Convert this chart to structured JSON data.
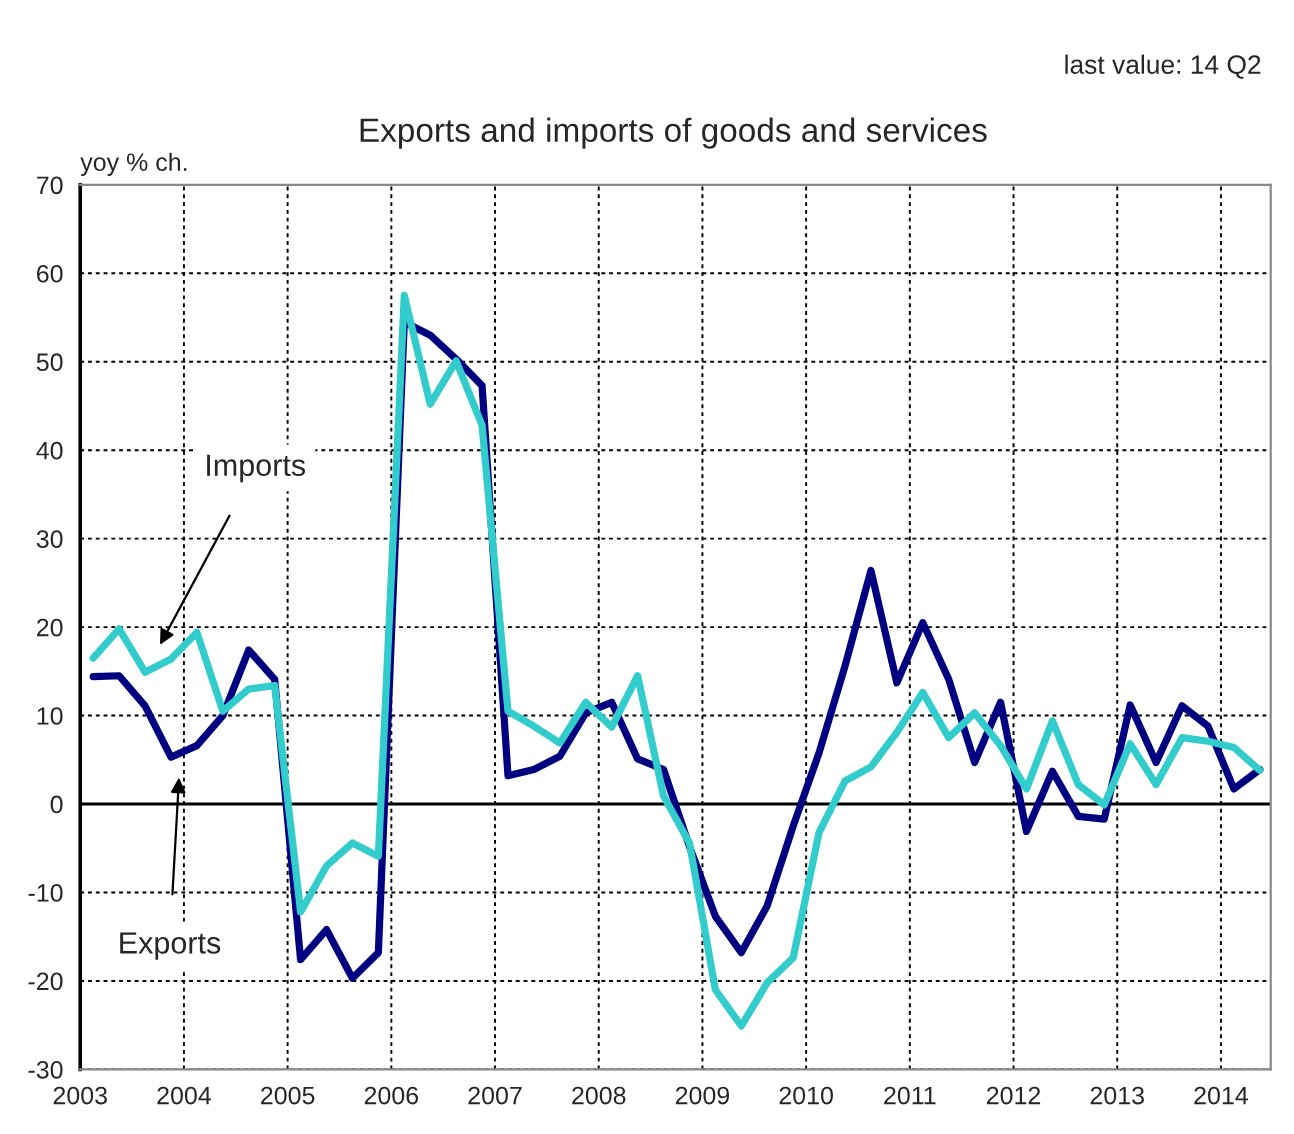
{
  "chart_data": {
    "type": "line",
    "title": "Exports and imports of goods and services",
    "subtitle": "last value: 14 Q2",
    "ylabel": "yoy % ch.",
    "x": [
      2003.125,
      2003.375,
      2003.625,
      2003.875,
      2004.125,
      2004.375,
      2004.625,
      2004.875,
      2005.125,
      2005.375,
      2005.625,
      2005.875,
      2006.125,
      2006.375,
      2006.625,
      2006.875,
      2007.125,
      2007.375,
      2007.625,
      2007.875,
      2008.125,
      2008.375,
      2008.625,
      2008.875,
      2009.125,
      2009.375,
      2009.625,
      2009.875,
      2010.125,
      2010.375,
      2010.625,
      2010.875,
      2011.125,
      2011.375,
      2011.625,
      2011.875,
      2012.125,
      2012.375,
      2012.625,
      2012.875,
      2013.125,
      2013.375,
      2013.625,
      2013.875,
      2014.125,
      2014.375
    ],
    "series": [
      {
        "color": "#000080",
        "values": [
          14.4,
          14.5,
          11.1,
          5.3,
          6.6,
          10.0,
          17.4,
          14.1,
          -17.6,
          -14.2,
          -19.7,
          -16.8,
          54.5,
          53.0,
          50.3,
          47.3,
          3.2,
          3.9,
          5.4,
          10.3,
          11.5,
          5.1,
          3.9,
          -4.8,
          -12.7,
          -16.8,
          -11.5,
          -2.5,
          5.8,
          15.6,
          26.4,
          13.7,
          20.5,
          14.1,
          4.7,
          11.5,
          -3.1,
          3.7,
          -1.4,
          -1.7,
          11.2,
          4.7,
          11.1,
          8.8,
          1.7,
          3.9
        ]
      },
      {
        "color": "#33cccc",
        "values": [
          16.5,
          19.8,
          14.9,
          16.4,
          19.4,
          10.5,
          13.0,
          13.4,
          -12.2,
          -7.0,
          -4.4,
          -5.9,
          57.5,
          45.2,
          50.1,
          42.8,
          10.5,
          8.8,
          6.9,
          11.5,
          8.7,
          14.5,
          0.9,
          -4.4,
          -21.0,
          -25.1,
          -20.2,
          -17.4,
          -3.2,
          2.6,
          4.2,
          8.1,
          12.6,
          7.5,
          10.3,
          6.6,
          1.7,
          9.4,
          2.2,
          -0.1,
          6.8,
          2.2,
          7.5,
          7.1,
          6.4,
          3.8
        ]
      }
    ],
    "annotations": [
      "Imports",
      "Exports"
    ],
    "ref_lines": [
      {
        "axis": "y",
        "value": 0,
        "color": "#000000",
        "line_style": "solid"
      }
    ],
    "xlim": [
      2003,
      2014.48
    ],
    "xticks": [
      2003,
      2004,
      2005,
      2006,
      2007,
      2008,
      2009,
      2010,
      2011,
      2012,
      2013,
      2014
    ],
    "ylim": [
      -30,
      70
    ],
    "yticks": [
      -30,
      -20,
      -10,
      0,
      10,
      20,
      30,
      40,
      50,
      60,
      70
    ],
    "grid": true,
    "legend": false,
    "marker": "none",
    "line_style": "solid"
  }
}
